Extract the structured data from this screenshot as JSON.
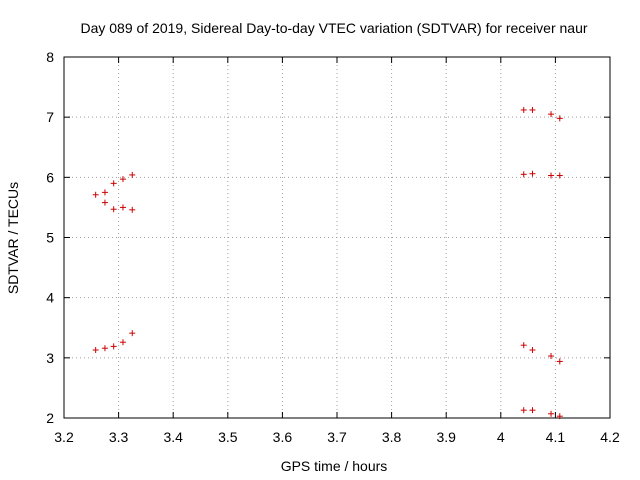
{
  "chart_data": {
    "type": "scatter",
    "title": "Day 089 of 2019, Sidereal Day-to-day VTEC variation (SDTVAR) for receiver naur",
    "xlabel": "GPS time / hours",
    "ylabel": "SDTVAR / TECUs",
    "xlim": [
      3.2,
      4.2
    ],
    "ylim": [
      2,
      8
    ],
    "xticks": [
      "3.2",
      "3.3",
      "3.4",
      "3.5",
      "3.6",
      "3.7",
      "3.8",
      "3.9",
      "4",
      "4.1",
      "4.2"
    ],
    "yticks": [
      "2",
      "3",
      "4",
      "5",
      "6",
      "7",
      "8"
    ],
    "grid": true,
    "marker": "+",
    "series_color": "#cc0000",
    "series": [
      {
        "name": "SDTVAR",
        "points": [
          [
            3.258,
            5.71
          ],
          [
            3.275,
            5.75
          ],
          [
            3.291,
            5.9
          ],
          [
            3.308,
            5.97
          ],
          [
            3.325,
            6.04
          ],
          [
            3.275,
            5.58
          ],
          [
            3.291,
            5.47
          ],
          [
            3.308,
            5.5
          ],
          [
            3.325,
            5.46
          ],
          [
            3.258,
            3.13
          ],
          [
            3.275,
            3.16
          ],
          [
            3.291,
            3.19
          ],
          [
            3.308,
            3.26
          ],
          [
            3.325,
            3.41
          ],
          [
            4.042,
            7.12
          ],
          [
            4.058,
            7.12
          ],
          [
            4.092,
            7.05
          ],
          [
            4.108,
            6.98
          ],
          [
            4.042,
            6.05
          ],
          [
            4.058,
            6.06
          ],
          [
            4.092,
            6.03
          ],
          [
            4.108,
            6.03
          ],
          [
            4.042,
            3.21
          ],
          [
            4.058,
            3.13
          ],
          [
            4.092,
            3.03
          ],
          [
            4.108,
            2.94
          ],
          [
            4.042,
            2.13
          ],
          [
            4.058,
            2.13
          ],
          [
            4.092,
            2.07
          ],
          [
            4.108,
            2.03
          ]
        ]
      }
    ]
  }
}
